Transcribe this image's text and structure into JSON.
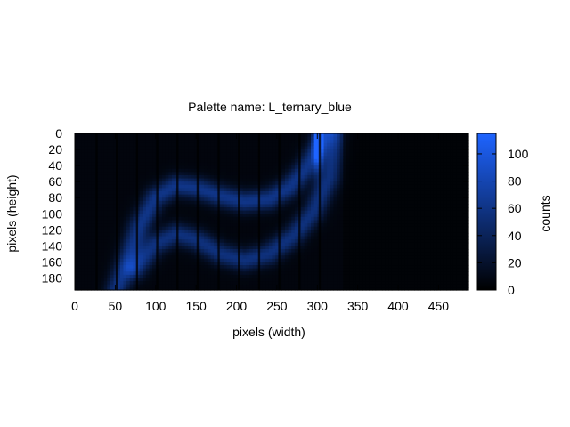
{
  "chart_data": {
    "type": "heatmap",
    "title": "Palette name: L_ternary_blue",
    "xlabel": "pixels (width)",
    "ylabel": "pixels (height)",
    "colorbar_label": "counts",
    "xlim": [
      0,
      487
    ],
    "ylim": [
      0,
      195
    ],
    "y_reversed": true,
    "x_ticks": [
      0,
      50,
      100,
      150,
      200,
      250,
      300,
      350,
      400,
      450
    ],
    "y_ticks": [
      0,
      20,
      40,
      60,
      80,
      100,
      120,
      140,
      160,
      180
    ],
    "colorbar_range": [
      0,
      115
    ],
    "colorbar_ticks": [
      0,
      20,
      40,
      60,
      80,
      100
    ],
    "colormap": {
      "name": "L_ternary_blue",
      "low": "#000000",
      "high": "#1e64ff"
    },
    "background_counts": 6,
    "features": [
      {
        "name": "upper arc",
        "points": [
          [
            52,
            195
          ],
          [
            65,
            160
          ],
          [
            80,
            115
          ],
          [
            100,
            80
          ],
          [
            125,
            65
          ],
          [
            150,
            68
          ],
          [
            180,
            78
          ],
          [
            210,
            85
          ],
          [
            240,
            82
          ],
          [
            265,
            68
          ],
          [
            285,
            45
          ],
          [
            300,
            20
          ],
          [
            310,
            0
          ]
        ],
        "peak_counts": 55
      },
      {
        "name": "lower arc",
        "points": [
          [
            75,
            168
          ],
          [
            100,
            138
          ],
          [
            125,
            125
          ],
          [
            150,
            132
          ],
          [
            180,
            150
          ],
          [
            210,
            158
          ],
          [
            240,
            150
          ],
          [
            270,
            128
          ],
          [
            295,
            98
          ],
          [
            315,
            55
          ],
          [
            322,
            0
          ]
        ],
        "peak_counts": 50
      },
      {
        "name": "bright band",
        "points": [
          [
            297,
            0
          ],
          [
            305,
            0
          ]
        ],
        "peak_counts": 100
      }
    ],
    "dark_columns": [
      27,
      52,
      77,
      102,
      127,
      152,
      178,
      203,
      228,
      253,
      278,
      303
    ]
  }
}
